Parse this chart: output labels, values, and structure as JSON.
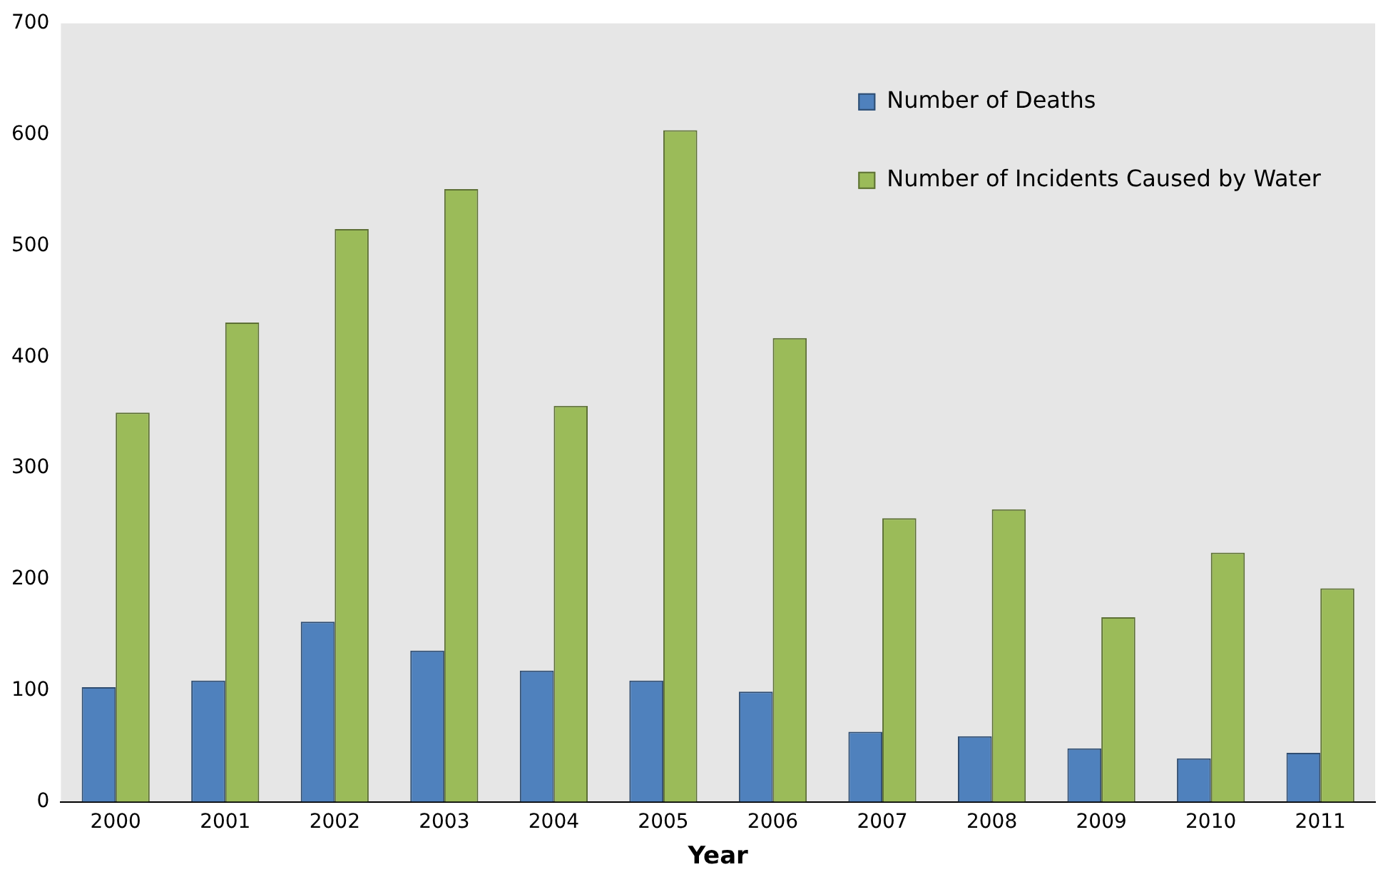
{
  "chart_data": {
    "type": "bar",
    "xlabel": "Year",
    "categories": [
      "2000",
      "2001",
      "2002",
      "2003",
      "2004",
      "2005",
      "2006",
      "2007",
      "2008",
      "2009",
      "2010",
      "2011"
    ],
    "series": [
      {
        "name": "Number of Deaths",
        "color": "#4f81bd",
        "values": [
          103,
          109,
          162,
          136,
          118,
          109,
          99,
          63,
          59,
          48,
          39,
          44
        ]
      },
      {
        "name": "Number of Incidents Caused by Water",
        "color": "#9bbb59",
        "values": [
          350,
          431,
          515,
          551,
          356,
          604,
          417,
          255,
          263,
          166,
          224,
          192
        ]
      }
    ],
    "ylim": [
      0,
      700
    ],
    "yticks": [
      0,
      100,
      200,
      300,
      400,
      500,
      600,
      700
    ],
    "grid": false,
    "legend": "top right"
  }
}
